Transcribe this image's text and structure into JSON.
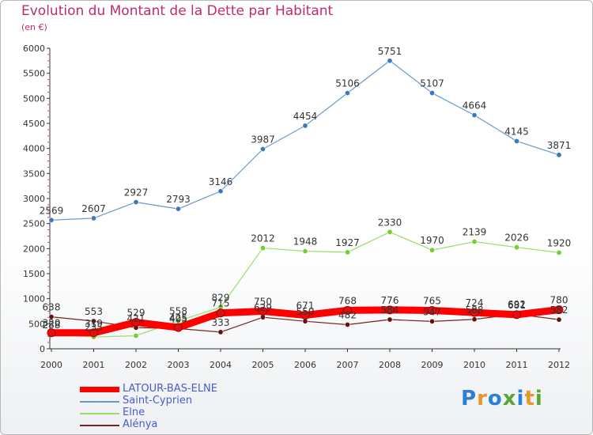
{
  "header": {
    "title": "Evolution du Montant de la Dette par Habitant",
    "subtitle": "(en €)"
  },
  "legend": {
    "items": [
      {
        "label": "LATOUR-BAS-ELNE",
        "color": "#ff0000"
      },
      {
        "label": "Saint-Cyprien",
        "color": "#6699cc"
      },
      {
        "label": "Elne",
        "color": "#99dd66"
      },
      {
        "label": "Alénya",
        "color": "#772222"
      }
    ]
  },
  "logo": {
    "letters": [
      "P",
      "r",
      "o",
      "x",
      "i",
      "t",
      "i"
    ],
    "colors": [
      "#2a7fd6",
      "#e8962a",
      "#2a7fd6",
      "#5aa632",
      "#2a7fd6",
      "#e8962a",
      "#5aa632"
    ]
  },
  "chart_data": {
    "type": "line",
    "x": [
      "2000",
      "2001",
      "2002",
      "2003",
      "2004",
      "2005",
      "2006",
      "2007",
      "2008",
      "2009",
      "2010",
      "2011",
      "2012"
    ],
    "ylim": [
      0,
      6000
    ],
    "yticks": [
      "0",
      "500",
      "1000",
      "1500",
      "2000",
      "2500",
      "3000",
      "3500",
      "4000",
      "4500",
      "5000",
      "5500",
      "6000"
    ],
    "grid": false,
    "series": [
      {
        "name": "Saint-Cyprien",
        "color": "#6699cc",
        "marker": "#3d78bd",
        "values": [
          2569,
          2607,
          2927,
          2793,
          3146,
          3987,
          4454,
          5106,
          5751,
          5107,
          4664,
          4145,
          3871
        ],
        "labels": [
          "2569",
          "2607",
          "2927",
          "2793",
          "3146",
          "3987",
          "4454",
          "5106",
          "5751",
          "5107",
          "4664",
          "4145",
          "3871"
        ]
      },
      {
        "name": "Elne",
        "color": "#99dd66",
        "marker": "#77cc33",
        "values": [
          288,
          235,
          261,
          558,
          829,
          2012,
          1948,
          1927,
          2330,
          1970,
          2139,
          2026,
          1920
        ],
        "labels": [
          "288",
          "235",
          "",
          "558",
          "829",
          "2012",
          "1948",
          "1927",
          "2330",
          "1970",
          "2139",
          "2026",
          "1920"
        ]
      },
      {
        "name": "Alénya",
        "color": "#772222",
        "marker": "#661111",
        "values": [
          638,
          553,
          421,
          405,
          333,
          629,
          550,
          482,
          584,
          547,
          588,
          692,
          582
        ],
        "labels": [
          "638",
          "553",
          "421",
          "405",
          "333",
          "629",
          "550",
          "482",
          "584",
          "547",
          "588",
          "692",
          "582"
        ]
      },
      {
        "name": "LATOUR-BAS-ELNE",
        "color": "#ff0000",
        "marker": "#dd1111",
        "values": [
          320,
          319,
          529,
          425,
          715,
          750,
          671,
          768,
          776,
          765,
          724,
          681,
          780
        ],
        "labels": [
          "320",
          "319",
          "529",
          "425",
          "715",
          "750",
          "671",
          "768",
          "776",
          "765",
          "724",
          "681",
          "780"
        ]
      }
    ]
  }
}
